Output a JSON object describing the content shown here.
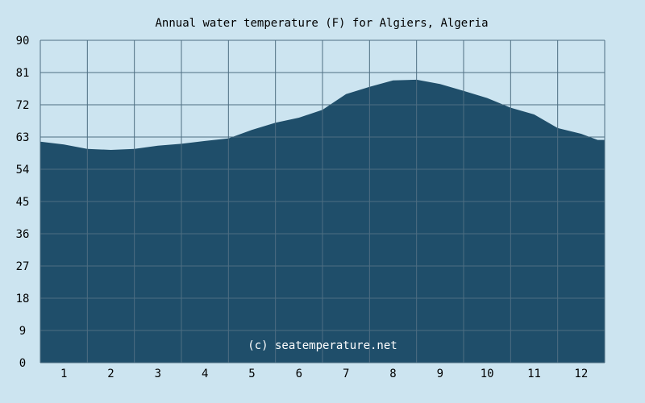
{
  "chart_data": {
    "type": "area",
    "title": "Annual water temperature (F) for Algiers, Algeria",
    "xlabel": "",
    "ylabel": "",
    "ylim": [
      0,
      90
    ],
    "y_ticks": [
      "0",
      "9",
      "18",
      "27",
      "36",
      "45",
      "54",
      "63",
      "72",
      "81",
      "90"
    ],
    "x_ticks": [
      "1",
      "2",
      "3",
      "4",
      "5",
      "6",
      "7",
      "8",
      "9",
      "10",
      "11",
      "12"
    ],
    "grid": true,
    "watermark": "(c) seatemperature.net",
    "series": [
      {
        "x": [
          0.5,
          1.0,
          1.5,
          2.0,
          2.5,
          3.0,
          3.5,
          4.0,
          4.5,
          5.0,
          5.5,
          6.0,
          6.5,
          7.0,
          7.5,
          8.0,
          8.5,
          9.0,
          9.5,
          10.0,
          10.5,
          11.0,
          11.5,
          12.0,
          12.35
        ],
        "values": [
          61.7,
          60.9,
          59.7,
          59.4,
          59.7,
          60.6,
          61.1,
          61.9,
          62.6,
          65.0,
          67.0,
          68.4,
          70.6,
          75.0,
          77.0,
          78.8,
          79.0,
          77.8,
          75.9,
          73.9,
          71.2,
          69.3,
          65.5,
          63.9,
          62.2
        ]
      }
    ]
  },
  "colors": {
    "background": "#cce4f0",
    "area_fill": "#1f4e6a",
    "grid_line": "#4e6e82",
    "text": "#000000",
    "watermark": "#ffffff"
  }
}
